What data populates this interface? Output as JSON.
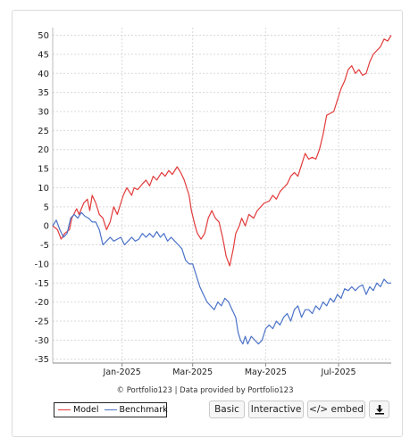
{
  "chart_data": {
    "type": "line",
    "x_ticks": [
      "Jan-2025",
      "Mar-2025",
      "May-2025",
      "Jul-2025"
    ],
    "ylim": [
      -36,
      52
    ],
    "y_ticks": [
      50,
      45,
      40,
      35,
      30,
      25,
      20,
      15,
      10,
      5,
      0,
      -5,
      -10,
      -15,
      -20,
      -25,
      -30,
      -35
    ],
    "grid": true,
    "legend_position": "bottom-left",
    "series": [
      {
        "name": "Model",
        "color": "#e23b3b",
        "points": [
          [
            "2024-11-04",
            0
          ],
          [
            "2024-11-08",
            -1
          ],
          [
            "2024-11-11",
            -3.5
          ],
          [
            "2024-11-14",
            -2
          ],
          [
            "2024-11-18",
            -1
          ],
          [
            "2024-11-20",
            2
          ],
          [
            "2024-11-24",
            4.5
          ],
          [
            "2024-11-26",
            3
          ],
          [
            "2024-11-30",
            6
          ],
          [
            "2024-12-03",
            7
          ],
          [
            "2024-12-05",
            4
          ],
          [
            "2024-12-07",
            8
          ],
          [
            "2024-12-10",
            6
          ],
          [
            "2024-12-13",
            3
          ],
          [
            "2024-12-16",
            2
          ],
          [
            "2024-12-19",
            -1
          ],
          [
            "2024-12-22",
            1
          ],
          [
            "2024-12-25",
            5
          ],
          [
            "2024-12-28",
            3
          ],
          [
            "2024-12-31",
            6
          ],
          [
            "2025-01-02",
            8
          ],
          [
            "2025-01-05",
            10
          ],
          [
            "2025-01-07",
            9
          ],
          [
            "2025-01-09",
            8
          ],
          [
            "2025-01-11",
            10
          ],
          [
            "2025-01-14",
            9.5
          ],
          [
            "2025-01-18",
            11
          ],
          [
            "2025-01-21",
            12
          ],
          [
            "2025-01-24",
            10.5
          ],
          [
            "2025-01-27",
            13
          ],
          [
            "2025-01-30",
            12
          ],
          [
            "2025-02-03",
            14
          ],
          [
            "2025-02-06",
            13
          ],
          [
            "2025-02-09",
            14.5
          ],
          [
            "2025-02-12",
            13.5
          ],
          [
            "2025-02-16",
            15.5
          ],
          [
            "2025-02-19",
            14
          ],
          [
            "2025-02-22",
            12
          ],
          [
            "2025-02-24",
            10
          ],
          [
            "2025-02-26",
            8
          ],
          [
            "2025-02-28",
            4
          ],
          [
            "2025-03-03",
            0
          ],
          [
            "2025-03-05",
            -2
          ],
          [
            "2025-03-08",
            -3.5
          ],
          [
            "2025-03-11",
            -2
          ],
          [
            "2025-03-14",
            2
          ],
          [
            "2025-03-17",
            4
          ],
          [
            "2025-03-20",
            2
          ],
          [
            "2025-03-23",
            1
          ],
          [
            "2025-03-26",
            -3
          ],
          [
            "2025-03-29",
            -8
          ],
          [
            "2025-04-01",
            -10.5
          ],
          [
            "2025-04-04",
            -6
          ],
          [
            "2025-04-06",
            -2
          ],
          [
            "2025-04-09",
            0
          ],
          [
            "2025-04-11",
            2
          ],
          [
            "2025-04-14",
            0
          ],
          [
            "2025-04-17",
            3
          ],
          [
            "2025-04-21",
            2
          ],
          [
            "2025-04-24",
            4
          ],
          [
            "2025-04-27",
            5
          ],
          [
            "2025-04-30",
            6
          ],
          [
            "2025-05-04",
            6.5
          ],
          [
            "2025-05-07",
            8
          ],
          [
            "2025-05-10",
            7
          ],
          [
            "2025-05-13",
            9
          ],
          [
            "2025-05-16",
            10
          ],
          [
            "2025-05-19",
            11
          ],
          [
            "2025-05-22",
            13
          ],
          [
            "2025-05-25",
            14
          ],
          [
            "2025-05-28",
            13
          ],
          [
            "2025-05-31",
            16
          ],
          [
            "2025-06-03",
            19
          ],
          [
            "2025-06-06",
            17.5
          ],
          [
            "2025-06-09",
            18
          ],
          [
            "2025-06-12",
            17.5
          ],
          [
            "2025-06-15",
            20
          ],
          [
            "2025-06-18",
            24
          ],
          [
            "2025-06-21",
            29
          ],
          [
            "2025-06-24",
            29.5
          ],
          [
            "2025-06-27",
            30
          ],
          [
            "2025-06-30",
            33
          ],
          [
            "2025-07-03",
            36
          ],
          [
            "2025-07-06",
            38
          ],
          [
            "2025-07-09",
            41
          ],
          [
            "2025-07-12",
            42
          ],
          [
            "2025-07-15",
            40
          ],
          [
            "2025-07-18",
            41
          ],
          [
            "2025-07-21",
            39.5
          ],
          [
            "2025-07-24",
            40
          ],
          [
            "2025-07-27",
            43
          ],
          [
            "2025-07-30",
            45
          ],
          [
            "2025-08-02",
            46
          ],
          [
            "2025-08-05",
            47
          ],
          [
            "2025-08-08",
            49
          ],
          [
            "2025-08-11",
            48.5
          ],
          [
            "2025-08-14",
            50
          ]
        ]
      },
      {
        "name": "Benchmark",
        "color": "#4a72c8",
        "points": [
          [
            "2024-11-04",
            0
          ],
          [
            "2024-11-07",
            1.5
          ],
          [
            "2024-11-10",
            -1
          ],
          [
            "2024-11-13",
            -3
          ],
          [
            "2024-11-16",
            -2
          ],
          [
            "2024-11-19",
            2
          ],
          [
            "2024-11-22",
            3
          ],
          [
            "2024-11-25",
            2
          ],
          [
            "2024-11-28",
            3.5
          ],
          [
            "2024-12-01",
            2.5
          ],
          [
            "2024-12-04",
            2
          ],
          [
            "2024-12-07",
            1
          ],
          [
            "2024-12-10",
            1
          ],
          [
            "2024-12-13",
            -1
          ],
          [
            "2024-12-16",
            -5
          ],
          [
            "2024-12-19",
            -4
          ],
          [
            "2024-12-22",
            -3
          ],
          [
            "2024-12-25",
            -4
          ],
          [
            "2024-12-28",
            -3.5
          ],
          [
            "2024-12-31",
            -3
          ],
          [
            "2025-01-03",
            -5
          ],
          [
            "2025-01-06",
            -4
          ],
          [
            "2025-01-09",
            -3
          ],
          [
            "2025-01-12",
            -4
          ],
          [
            "2025-01-15",
            -3.5
          ],
          [
            "2025-01-18",
            -2
          ],
          [
            "2025-01-21",
            -3
          ],
          [
            "2025-01-24",
            -2
          ],
          [
            "2025-01-27",
            -3
          ],
          [
            "2025-01-30",
            -1.5
          ],
          [
            "2025-02-02",
            -3
          ],
          [
            "2025-02-05",
            -2
          ],
          [
            "2025-02-08",
            -4
          ],
          [
            "2025-02-11",
            -3
          ],
          [
            "2025-02-14",
            -4
          ],
          [
            "2025-02-17",
            -5
          ],
          [
            "2025-02-20",
            -6
          ],
          [
            "2025-02-23",
            -9
          ],
          [
            "2025-02-26",
            -10
          ],
          [
            "2025-03-01",
            -10
          ],
          [
            "2025-03-04",
            -13
          ],
          [
            "2025-03-07",
            -16
          ],
          [
            "2025-03-10",
            -18
          ],
          [
            "2025-03-13",
            -20
          ],
          [
            "2025-03-16",
            -21
          ],
          [
            "2025-03-19",
            -22
          ],
          [
            "2025-03-22",
            -20
          ],
          [
            "2025-03-25",
            -21
          ],
          [
            "2025-03-28",
            -19
          ],
          [
            "2025-03-31",
            -20
          ],
          [
            "2025-04-03",
            -22
          ],
          [
            "2025-04-06",
            -24
          ],
          [
            "2025-04-08",
            -28
          ],
          [
            "2025-04-10",
            -30
          ],
          [
            "2025-04-12",
            -31
          ],
          [
            "2025-04-14",
            -29
          ],
          [
            "2025-04-16",
            -31
          ],
          [
            "2025-04-19",
            -29
          ],
          [
            "2025-04-22",
            -30
          ],
          [
            "2025-04-25",
            -31
          ],
          [
            "2025-04-28",
            -30
          ],
          [
            "2025-05-01",
            -27
          ],
          [
            "2025-05-04",
            -26
          ],
          [
            "2025-05-07",
            -27
          ],
          [
            "2025-05-10",
            -25
          ],
          [
            "2025-05-13",
            -26
          ],
          [
            "2025-05-16",
            -24
          ],
          [
            "2025-05-19",
            -23
          ],
          [
            "2025-05-22",
            -25
          ],
          [
            "2025-05-25",
            -22
          ],
          [
            "2025-05-28",
            -21
          ],
          [
            "2025-05-31",
            -24
          ],
          [
            "2025-06-03",
            -22
          ],
          [
            "2025-06-06",
            -22
          ],
          [
            "2025-06-09",
            -23
          ],
          [
            "2025-06-12",
            -21
          ],
          [
            "2025-06-15",
            -22
          ],
          [
            "2025-06-18",
            -20
          ],
          [
            "2025-06-21",
            -21
          ],
          [
            "2025-06-24",
            -19
          ],
          [
            "2025-06-27",
            -20
          ],
          [
            "2025-06-30",
            -18
          ],
          [
            "2025-07-03",
            -19
          ],
          [
            "2025-07-06",
            -16.5
          ],
          [
            "2025-07-09",
            -17
          ],
          [
            "2025-07-12",
            -16
          ],
          [
            "2025-07-15",
            -17
          ],
          [
            "2025-07-18",
            -16
          ],
          [
            "2025-07-21",
            -15.5
          ],
          [
            "2025-07-24",
            -18
          ],
          [
            "2025-07-27",
            -16
          ],
          [
            "2025-07-30",
            -17
          ],
          [
            "2025-08-02",
            -15
          ],
          [
            "2025-08-05",
            -16
          ],
          [
            "2025-08-08",
            -14
          ],
          [
            "2025-08-11",
            -15
          ],
          [
            "2025-08-14",
            -15
          ]
        ]
      }
    ]
  },
  "credit": "© Portfolio123 | Data provided by Portfolio123",
  "legend": {
    "model_label": "Model",
    "benchmark_label": "Benchmark"
  },
  "toolbar": {
    "basic_label": "Basic",
    "interactive_label": "Interactive",
    "embed_label": "</> embed",
    "download_icon": "download-icon"
  }
}
